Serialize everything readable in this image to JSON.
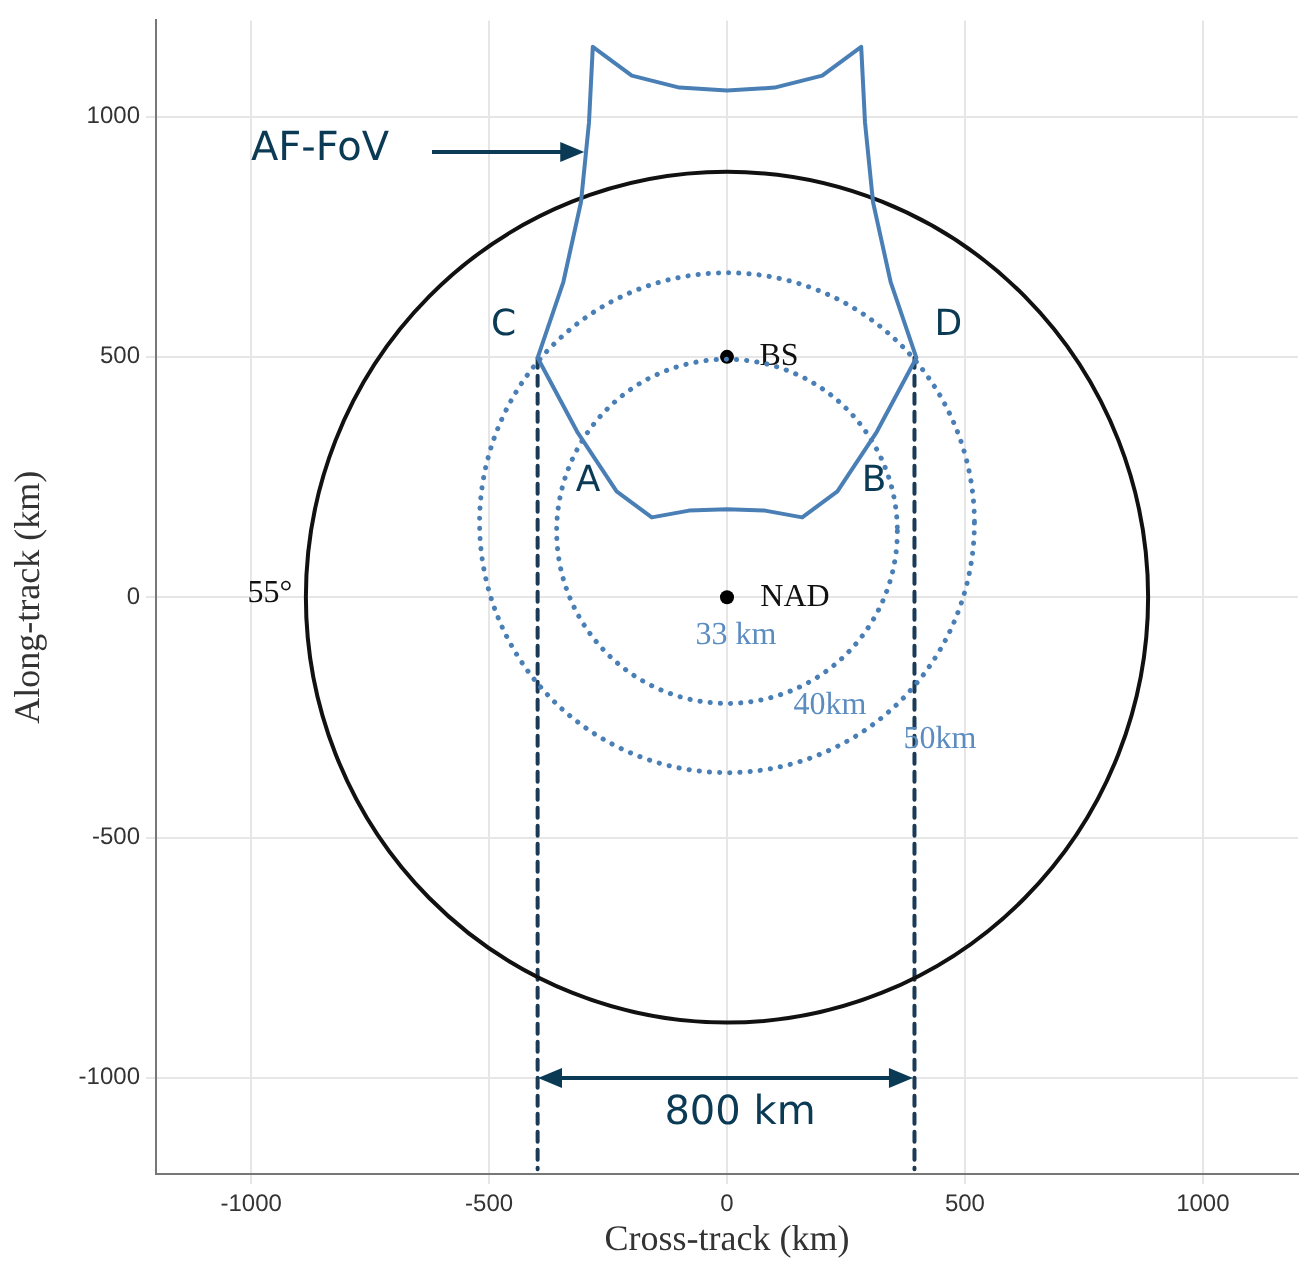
{
  "chart_data": {
    "type": "line",
    "xlabel": "Cross-track (km)",
    "ylabel": "Along-track (km)",
    "xlim": [
      -1200,
      1200
    ],
    "xticks": [
      -1000,
      -500,
      0,
      500,
      1000
    ],
    "ylim": [
      -1200,
      1200
    ],
    "yticks": [
      -1000,
      -500,
      0,
      500,
      1000
    ],
    "grid": true,
    "legend": false,
    "series": [
      {
        "color": "#1a3a55",
        "line_style": "dashed",
        "marker": "none",
        "x": [
          -398,
          -398
        ],
        "values": [
          498,
          -1190
        ]
      },
      {
        "color": "#1a3a55",
        "line_style": "dashed",
        "marker": "none",
        "x": [
          394,
          394
        ],
        "values": [
          498,
          -1190
        ]
      },
      {
        "type": "scatter",
        "color": "#000000",
        "marker": "circle",
        "x": [
          0,
          0
        ],
        "values": [
          500,
          0
        ]
      }
    ],
    "annotations": [
      "AF-FoV",
      {
        "text": "C",
        "x": -398,
        "y": 498
      },
      {
        "text": "D",
        "x": 394,
        "y": 498
      },
      "A",
      "B",
      {
        "text": "BS",
        "x": 0,
        "y": 500
      },
      {
        "text": "NAD",
        "x": 0,
        "y": 0
      },
      "33 km",
      "40km",
      "50km",
      "55°",
      "800 km"
    ]
  }
}
